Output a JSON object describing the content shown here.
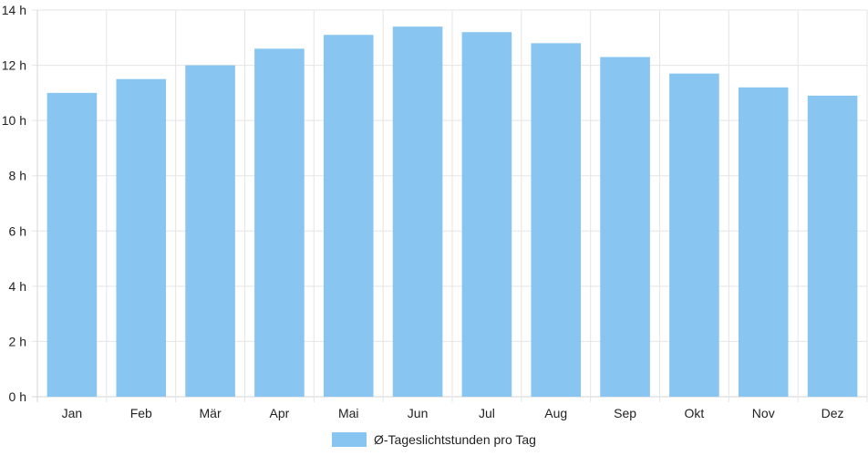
{
  "chart_data": {
    "type": "bar",
    "categories": [
      "Jan",
      "Feb",
      "Mär",
      "Apr",
      "Mai",
      "Jun",
      "Jul",
      "Aug",
      "Sep",
      "Okt",
      "Nov",
      "Dez"
    ],
    "series": [
      {
        "name": "Ø-Tageslichtstunden pro Tag",
        "values": [
          11.0,
          11.5,
          12.0,
          12.6,
          13.1,
          13.4,
          13.2,
          12.8,
          12.3,
          11.7,
          11.2,
          10.9
        ]
      }
    ],
    "y_ticks": [
      "0 h",
      "2 h",
      "4 h",
      "6 h",
      "8 h",
      "10 h",
      "12 h",
      "14 h"
    ],
    "ylim": [
      0,
      14
    ],
    "y_step": 2,
    "grid": true,
    "legend_position": "bottom"
  },
  "colors": {
    "bar": "#88c6f1",
    "grid": "#e5e5e5",
    "axis": "#d6d6d6"
  }
}
